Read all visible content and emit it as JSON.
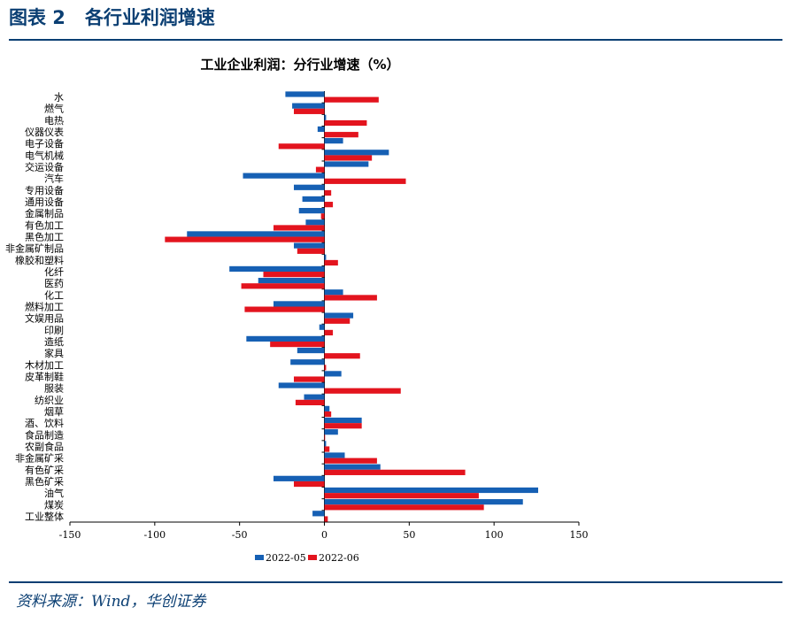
{
  "header": {
    "figure_no": "图表 2",
    "title": "各行业利润增速"
  },
  "source": "资料来源：Wind，华创证券",
  "colors": {
    "series_2022_05": "#1660b4",
    "series_2022_06": "#e3141e",
    "frame": "#0b3f73"
  },
  "chart_data": {
    "type": "bar",
    "orientation": "horizontal",
    "title": "工业企业利润：分行业增速（%）",
    "xlim": [
      -150,
      150
    ],
    "xticks": [
      -150,
      -100,
      -50,
      0,
      50,
      100,
      150
    ],
    "legend_position": "bottom",
    "categories": [
      "水",
      "燃气",
      "电热",
      "仪器仪表",
      "电子设备",
      "电气机械",
      "交运设备",
      "汽车",
      "专用设备",
      "通用设备",
      "金属制品",
      "有色加工",
      "黑色加工",
      "非金属矿制品",
      "橡胶和塑料",
      "化纤",
      "医药",
      "化工",
      "燃料加工",
      "文娱用品",
      "印刷",
      "造纸",
      "家具",
      "木材加工",
      "皮革制鞋",
      "服装",
      "纺织业",
      "烟草",
      "酒、饮料",
      "食品制造",
      "农副食品",
      "非金属矿采",
      "有色矿采",
      "黑色矿采",
      "油气",
      "煤炭",
      "工业整体"
    ],
    "series": [
      {
        "name": "2022-05",
        "values": [
          -23,
          -19,
          1,
          -4,
          11,
          38,
          26,
          -48,
          -18,
          -13,
          -15,
          -11,
          -81,
          -18,
          1,
          -56,
          -39,
          11,
          -30,
          17,
          -3,
          -46,
          -16,
          -20,
          10,
          -27,
          -12,
          3,
          22,
          8,
          1,
          12,
          33,
          -30,
          126,
          117,
          -7
        ]
      },
      {
        "name": "2022-06",
        "values": [
          32,
          -18,
          25,
          20,
          -27,
          28,
          -5,
          48,
          4,
          5,
          -2,
          -30,
          -94,
          -16,
          8,
          -36,
          -49,
          31,
          -47,
          15,
          5,
          -32,
          21,
          1,
          -18,
          45,
          -17,
          4,
          22,
          0,
          3,
          31,
          83,
          -18,
          91,
          94,
          2
        ]
      }
    ]
  }
}
